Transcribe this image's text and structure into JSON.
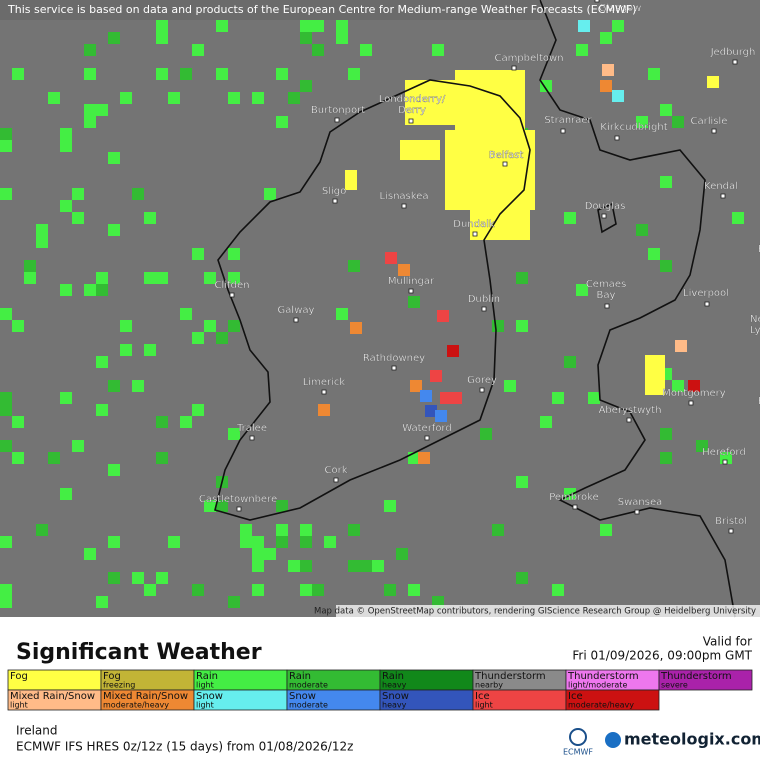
{
  "banner": "This service is based on data and products of the European Centre for Medium-range Weather Forecasts (ECMWF)",
  "places": [
    {
      "lines": [
        "Glasgow"
      ]
    },
    {
      "lines": [
        "Campbeltown"
      ]
    },
    {
      "lines": [
        "Jedburgh"
      ]
    },
    {
      "lines": [
        "Burtonport"
      ]
    },
    {
      "lines": [
        "Londonderry/",
        "Derry"
      ]
    },
    {
      "lines": [
        "Stranraer"
      ]
    },
    {
      "lines": [
        "Kirkcudbright"
      ]
    },
    {
      "lines": [
        "Carlisle"
      ]
    },
    {
      "lines": [
        "Belfast"
      ]
    },
    {
      "lines": [
        "Sligo"
      ]
    },
    {
      "lines": [
        "Lisnaskea"
      ]
    },
    {
      "lines": [
        "Kendal"
      ]
    },
    {
      "lines": [
        "Douglas"
      ]
    },
    {
      "lines": [
        "Dundalk"
      ]
    },
    {
      "lines": [
        "Burn"
      ]
    },
    {
      "lines": [
        "Mullingar"
      ]
    },
    {
      "lines": [
        "Clifden"
      ]
    },
    {
      "lines": [
        "Cemaes",
        "Bay"
      ]
    },
    {
      "lines": [
        "Liverpool"
      ]
    },
    {
      "lines": [
        "Dublin"
      ]
    },
    {
      "lines": [
        "Galway"
      ]
    },
    {
      "lines": [
        "Newca",
        "Lym"
      ]
    },
    {
      "lines": [
        "Rathdowney"
      ]
    },
    {
      "lines": [
        "Gorey"
      ]
    },
    {
      "lines": [
        "Limerick"
      ]
    },
    {
      "lines": [
        "Montgomery"
      ]
    },
    {
      "lines": [
        "Bir"
      ]
    },
    {
      "lines": [
        "Aberystwyth"
      ]
    },
    {
      "lines": [
        "Tralee"
      ]
    },
    {
      "lines": [
        "Waterford"
      ]
    },
    {
      "lines": [
        "Hereford"
      ]
    },
    {
      "lines": [
        "Cork"
      ]
    },
    {
      "lines": [
        "Pembroke"
      ]
    },
    {
      "lines": [
        "Castletownbere"
      ]
    },
    {
      "lines": [
        "Swansea"
      ]
    },
    {
      "lines": [
        "Bristol"
      ]
    }
  ],
  "attribution": "Map data © OpenStreetMap contributors, rendering GIScience Research Group @ Heidelberg University",
  "legend": {
    "title": "Significant Weather",
    "valid_label": "Valid for",
    "valid_time": "Fri 01/09/2026, 09:00pm GMT",
    "items": [
      {
        "name": "Fog",
        "color": "#ffff44"
      },
      {
        "name": "Fog",
        "detail": "freezing",
        "color": "#c2b436"
      },
      {
        "name": "Rain",
        "detail": "light",
        "color": "#44ee44"
      },
      {
        "name": "Rain",
        "detail": "moderate",
        "color": "#33bb33"
      },
      {
        "name": "Rain",
        "detail": "heavy",
        "color": "#11881a"
      },
      {
        "name": "Thunderstorm",
        "detail": "nearby",
        "color": "#8a8a8a"
      },
      {
        "name": "Thunderstorm",
        "detail": "light/moderate",
        "color": "#ee77ee"
      },
      {
        "name": "Thunderstorm",
        "detail": "severe",
        "color": "#aa22aa"
      },
      {
        "name": "Mixed Rain/Snow",
        "detail": "light",
        "color": "#ffbb88"
      },
      {
        "name": "Mixed Rain/Snow",
        "detail": "moderate/heavy",
        "color": "#ee8833"
      },
      {
        "name": "Snow",
        "detail": "light",
        "color": "#66eeee"
      },
      {
        "name": "Snow",
        "detail": "moderate",
        "color": "#4488ee"
      },
      {
        "name": "Snow",
        "detail": "heavy",
        "color": "#3355bb"
      },
      {
        "name": "Ice",
        "detail": "light",
        "color": "#ee4444"
      },
      {
        "name": "Ice",
        "detail": "moderate/heavy",
        "color": "#cc1111"
      }
    ]
  },
  "footer": {
    "region": "Ireland",
    "model": "ECMWF IFS HRES 0z/12z (15 days) from 01/08/2026/12z",
    "ecmwf": "ECMWF",
    "brand": "meteologix.com"
  }
}
